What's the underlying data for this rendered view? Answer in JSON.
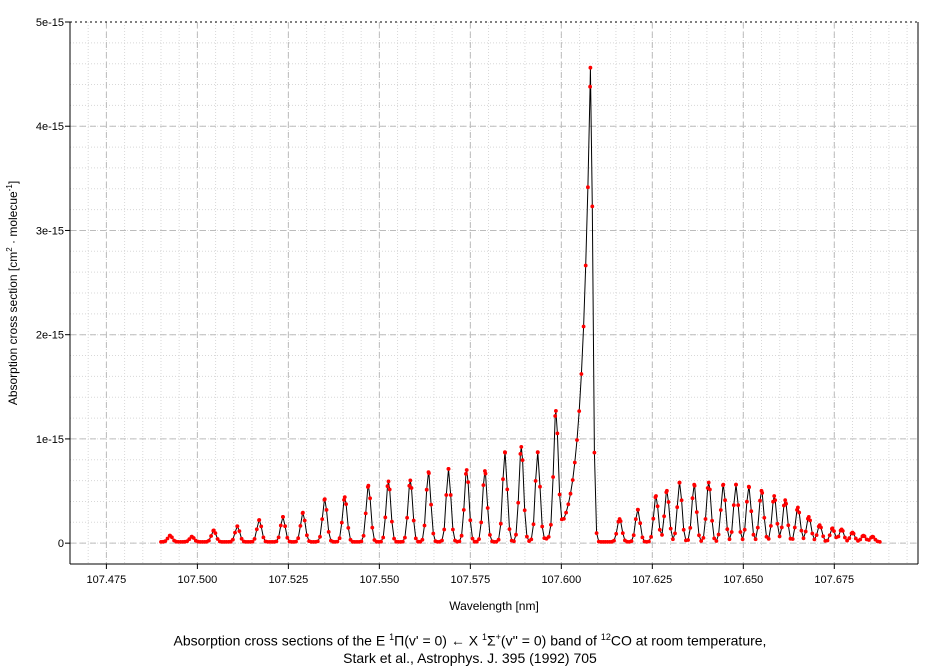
{
  "chart_data": {
    "type": "line",
    "title": "",
    "xlabel": "Wavelength [nm]",
    "ylabel_parts": [
      "Absorption cross section [cm",
      "2",
      " · molecue",
      "-1",
      "]"
    ],
    "xlim": [
      107.465,
      107.698
    ],
    "ylim": [
      -2e-16,
      5e-15
    ],
    "x_ticks": [
      107.475,
      107.5,
      107.525,
      107.55,
      107.575,
      107.6,
      107.625,
      107.65,
      107.675
    ],
    "x_tick_labels": [
      "107.475",
      "107.500",
      "107.525",
      "107.550",
      "107.575",
      "107.600",
      "107.625",
      "107.650",
      "107.675"
    ],
    "y_ticks": [
      0,
      1e-15,
      2e-15,
      3e-15,
      4e-15,
      5e-15
    ],
    "y_tick_labels": [
      "0",
      "1e-15",
      "2e-15",
      "3e-15",
      "4e-15",
      "5e-15"
    ],
    "grid": true,
    "line_color": "#000000",
    "marker_color": "#ff0000",
    "series": [
      {
        "x_start": 107.49,
        "x_end": 107.6875,
        "peak_x": 107.608,
        "peak_y": 4.55e-15,
        "p_branch_lines": [
          [
            107.4925,
            6e-17
          ],
          [
            107.4985,
            5e-17
          ],
          [
            107.5045,
            1.1e-16
          ],
          [
            107.511,
            1.5e-16
          ],
          [
            107.517,
            2.1e-16
          ],
          [
            107.5235,
            2.4e-16
          ],
          [
            107.529,
            2.8e-16
          ],
          [
            107.535,
            4.1e-16
          ],
          [
            107.5405,
            4.3e-16
          ],
          [
            107.547,
            5.4e-16
          ],
          [
            107.5525,
            5.8e-16
          ],
          [
            107.5585,
            5.9e-16
          ],
          [
            107.5635,
            6.7e-16
          ],
          [
            107.569,
            7e-16
          ],
          [
            107.574,
            6.9e-16
          ],
          [
            107.579,
            6.8e-16
          ],
          [
            107.5845,
            8.6e-16
          ],
          [
            107.589,
            9.1e-16
          ],
          [
            107.5935,
            8.5e-16
          ],
          [
            107.5985,
            1.17e-15
          ]
        ],
        "r_branch_lines": [
          [
            107.616,
            2.2e-16
          ],
          [
            107.621,
            3.1e-16
          ],
          [
            107.626,
            4.4e-16
          ],
          [
            107.629,
            4.9e-16
          ],
          [
            107.6325,
            5.7e-16
          ],
          [
            107.6365,
            5.5e-16
          ],
          [
            107.6405,
            5.7e-16
          ],
          [
            107.6445,
            5.5e-16
          ],
          [
            107.648,
            5.5e-16
          ],
          [
            107.6515,
            5.3e-16
          ],
          [
            107.655,
            4.9e-16
          ],
          [
            107.6585,
            4.4e-16
          ],
          [
            107.6615,
            4e-16
          ],
          [
            107.665,
            3.3e-16
          ],
          [
            107.668,
            2.4e-16
          ],
          [
            107.671,
            1.6e-16
          ],
          [
            107.6745,
            1.3e-16
          ],
          [
            107.677,
            1.2e-16
          ],
          [
            107.68,
            9e-17
          ],
          [
            107.683,
            6e-17
          ],
          [
            107.6855,
            5e-17
          ]
        ]
      }
    ]
  },
  "caption": {
    "line1_parts": [
      "Absorption cross sections of the E ",
      "1",
      "Π(v' = 0) ← X ",
      "1",
      "Σ",
      "+",
      "(v'' = 0) band of ",
      "12",
      "CO at room temperature,"
    ],
    "line2": "Stark et al., Astrophys. J. 395 (1992) 705"
  }
}
